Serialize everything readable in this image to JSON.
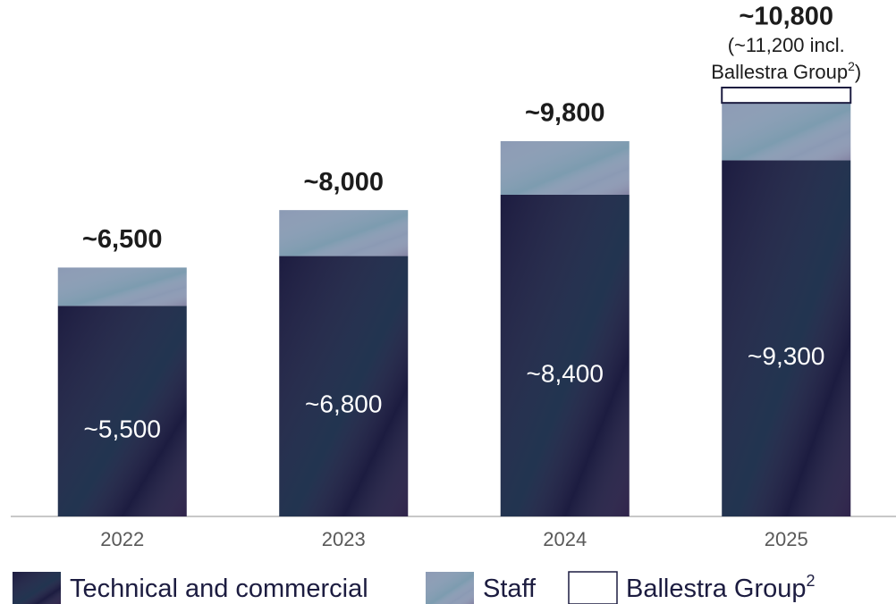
{
  "chart_data": {
    "type": "stacked_bar",
    "categories": [
      "2022",
      "2023",
      "2024",
      "2025"
    ],
    "series": [
      {
        "name": "Technical and commercial",
        "color": "#1c1c40",
        "values": [
          5500,
          6800,
          8400,
          9300
        ],
        "value_labels": [
          "~5,500",
          "~6,800",
          "~8,400",
          "~9,300"
        ]
      },
      {
        "name": "Staff",
        "color": "#8b9ab4",
        "values": [
          1000,
          1200,
          1400,
          1500
        ]
      },
      {
        "name": "Ballestra Group",
        "footnote": "2",
        "color": "#ffffff",
        "values": [
          null,
          null,
          null,
          400
        ]
      }
    ],
    "totals": {
      "values": [
        6500,
        8000,
        9800,
        10800
      ],
      "value_labels": [
        "~6,500",
        "~8,000",
        "~9,800",
        "~10,800"
      ]
    },
    "annotation": {
      "lines": [
        "(~11,200 incl.",
        "Ballestra Group"
      ],
      "footnote": "2",
      "close": ")"
    }
  }
}
